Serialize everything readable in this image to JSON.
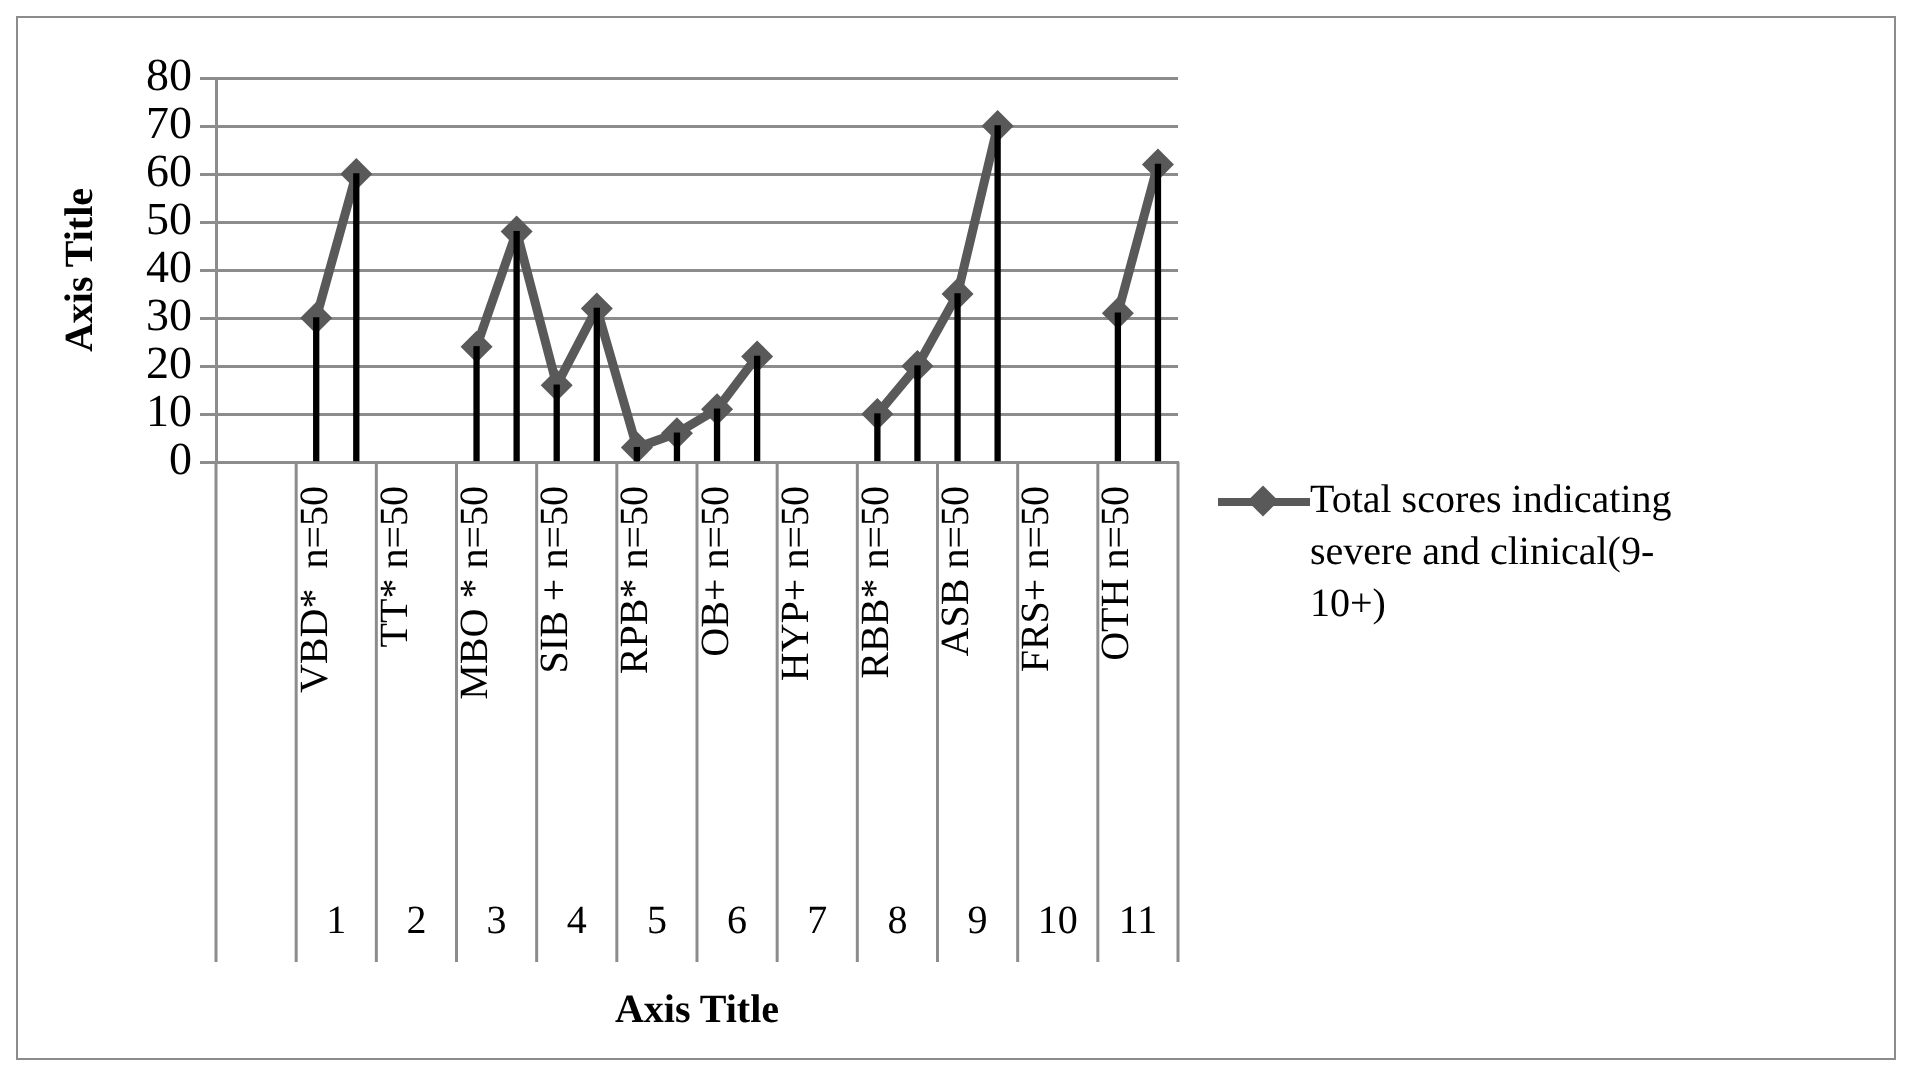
{
  "chart_data": {
    "type": "line",
    "ylabel": "Axis Title",
    "categories": [
      null,
      null,
      "VBD*  n=50",
      null,
      "TT* n=50",
      null,
      "MBO * n=50",
      null,
      "SIB + n=50",
      null,
      "RPB* n=50",
      null,
      "OB+ n=50",
      null,
      "HYP+ n=50",
      null,
      "RBB* n=50",
      null,
      "ASB n=50",
      null,
      "FRS+ n=50",
      null,
      "OTH n=50",
      null
    ],
    "series": [
      {
        "type": "bar",
        "color": "#000000",
        "values": [
          null,
          null,
          30,
          60,
          null,
          null,
          24,
          48,
          16,
          32,
          3,
          6,
          11,
          22,
          null,
          null,
          10,
          20,
          35,
          70,
          null,
          null,
          31,
          62
        ]
      },
      {
        "name": "Total scores indicating severe and clinical(9-10+)",
        "color": "#595959",
        "values": [
          null,
          null,
          30,
          60,
          null,
          null,
          24,
          48,
          16,
          32,
          3,
          6,
          11,
          22,
          null,
          null,
          10,
          20,
          35,
          70,
          null,
          null,
          31,
          62
        ]
      }
    ],
    "ylim": [
      0,
      80
    ],
    "yticks": [
      0,
      10,
      20,
      30,
      40,
      50,
      60,
      70,
      80
    ],
    "grid": true,
    "marker": "diamond",
    "legend": "right",
    "annotations": [
      "1",
      "2",
      "3",
      "4",
      "5",
      "6",
      "7",
      "8",
      "9",
      "10",
      "11",
      "Axis Title"
    ]
  }
}
